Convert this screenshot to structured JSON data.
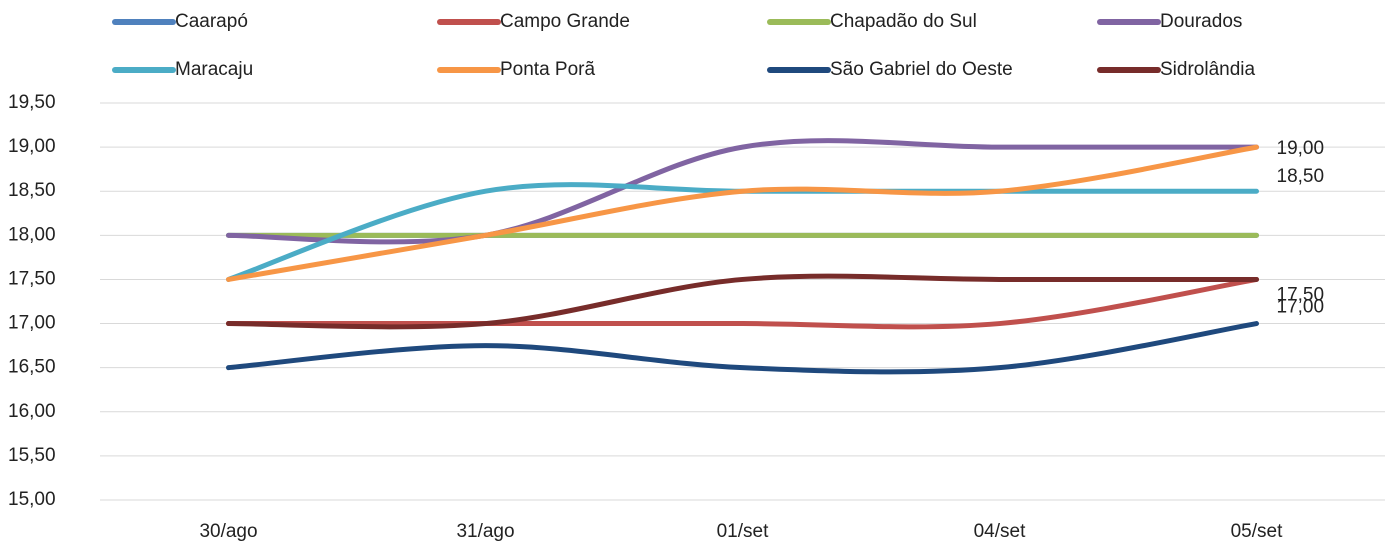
{
  "chart_data": {
    "type": "line",
    "categories": [
      "30/ago",
      "31/ago",
      "01/set",
      "04/set",
      "05/set"
    ],
    "series": [
      {
        "name": "Caarapó",
        "color": "#4f81bd",
        "values": [
          18,
          18,
          18,
          18,
          18
        ]
      },
      {
        "name": "Campo Grande",
        "color": "#c0504d",
        "values": [
          17,
          17,
          17,
          17,
          17.5
        ]
      },
      {
        "name": "Chapadão do Sul",
        "color": "#9bbb59",
        "values": [
          18,
          18,
          18,
          18,
          18
        ]
      },
      {
        "name": "Dourados",
        "color": "#8064a2",
        "values": [
          18,
          18,
          19,
          19,
          19
        ]
      },
      {
        "name": "Maracaju",
        "color": "#4bacc6",
        "values": [
          17.5,
          18.5,
          18.5,
          18.5,
          18.5
        ],
        "value_labels": [
          null,
          null,
          null,
          null,
          "18,50"
        ]
      },
      {
        "name": "Ponta Porã",
        "color": "#f79646",
        "values": [
          17.5,
          18,
          18.5,
          18.5,
          19
        ],
        "value_labels": [
          null,
          null,
          null,
          null,
          "19,00"
        ]
      },
      {
        "name": "São Gabriel do Oeste",
        "color": "#1f497d",
        "values": [
          16.5,
          16.75,
          16.5,
          16.5,
          17
        ],
        "value_labels": [
          null,
          null,
          null,
          null,
          "17,00"
        ]
      },
      {
        "name": "Sidrolândia",
        "color": "#772c2a",
        "values": [
          17,
          17,
          17.5,
          17.5,
          17.5
        ],
        "value_labels": [
          null,
          null,
          null,
          null,
          "17,50"
        ]
      }
    ],
    "ylim": [
      15,
      19.5
    ],
    "yticks": [
      {
        "value": 15,
        "label": "15,00"
      },
      {
        "value": 15.5,
        "label": "15,50"
      },
      {
        "value": 16,
        "label": "16,00"
      },
      {
        "value": 16.5,
        "label": "16,50"
      },
      {
        "value": 17,
        "label": "17,00"
      },
      {
        "value": 17.5,
        "label": "17,50"
      },
      {
        "value": 18,
        "label": "18,00"
      },
      {
        "value": 18.5,
        "label": "18,50"
      },
      {
        "value": 19,
        "label": "19,00"
      },
      {
        "value": 19.5,
        "label": "19,50"
      }
    ],
    "grid": true,
    "smooth": true,
    "legend": "top"
  }
}
